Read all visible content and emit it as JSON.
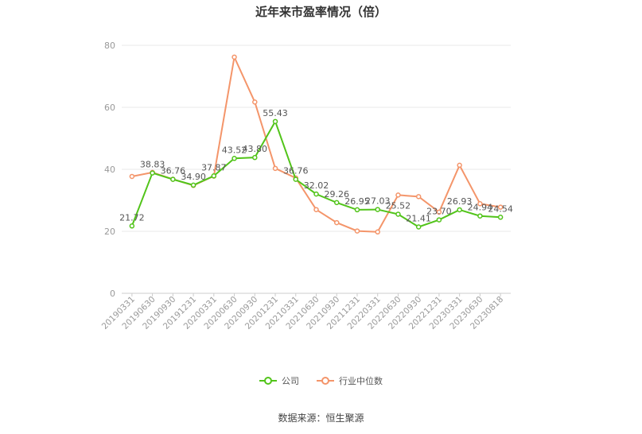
{
  "chart_data": {
    "type": "line",
    "title": "近年来市盈率情况（倍）",
    "categories": [
      "20190331",
      "20190630",
      "20190930",
      "20191231",
      "20200331",
      "20200630",
      "20200930",
      "20201231",
      "20210331",
      "20210630",
      "20210930",
      "20211231",
      "20220331",
      "20220630",
      "20220930",
      "20221231",
      "20230331",
      "20230630",
      "20230818"
    ],
    "series": [
      {
        "name": "公司",
        "color": "#52c41a",
        "values": [
          21.72,
          38.83,
          36.76,
          34.9,
          37.87,
          43.52,
          43.8,
          55.43,
          36.76,
          32.02,
          29.26,
          26.95,
          27.03,
          25.52,
          21.41,
          23.7,
          26.93,
          24.94,
          24.54
        ],
        "labels": [
          "21.72",
          "38.83",
          "36.76",
          "34.90",
          "37.87",
          "43.52",
          "43.80",
          "55.43",
          "36.76",
          "32.02",
          "29.26",
          "26.95",
          "27.03",
          "25.52",
          "21.41",
          "23.70",
          "26.93",
          "24.94",
          "24.54"
        ]
      },
      {
        "name": "行业中位数",
        "color": "#f4956a",
        "values": [
          37.7,
          39.0,
          36.8,
          34.8,
          37.8,
          76.2,
          61.7,
          40.3,
          37.2,
          27.0,
          22.8,
          20.1,
          19.8,
          31.7,
          31.2,
          26.2,
          41.3,
          28.9,
          27.8
        ]
      }
    ],
    "yticks": [
      0,
      20,
      40,
      60,
      80
    ],
    "ylim": [
      0,
      80
    ],
    "grid": true,
    "legend_position": "bottom"
  },
  "source": "数据来源：恒生聚源"
}
